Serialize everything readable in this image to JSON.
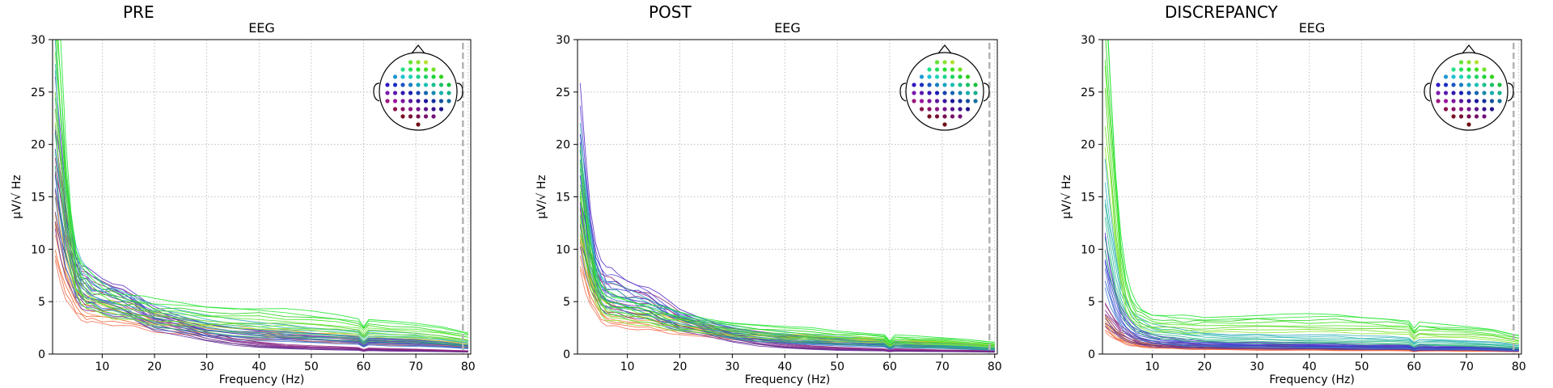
{
  "colors": {
    "grid": "#b0b0b0",
    "nyquist_line": "#b3b3b3",
    "axis": "#000000"
  },
  "chart_data": [
    {
      "type": "line",
      "panel_title": "PRE",
      "title": "EEG",
      "xlabel": "Frequency (Hz)",
      "ylabel": "µV/√ Hz",
      "xlim": [
        0.5,
        80.5
      ],
      "ylim": [
        0,
        30
      ],
      "xticks": [
        "10",
        "20",
        "30",
        "40",
        "50",
        "60",
        "70",
        "80"
      ],
      "yticks": [
        "0",
        "5",
        "10",
        "15",
        "20",
        "25",
        "30"
      ],
      "grid": true,
      "vline_x": 79,
      "legend": "sensor-topomap-inset top-right",
      "x": [
        1,
        2,
        3,
        4,
        5,
        6,
        7,
        8,
        10,
        12,
        14,
        16,
        18,
        20,
        25,
        30,
        35,
        40,
        45,
        50,
        55,
        59,
        60,
        61,
        65,
        70,
        75,
        80
      ],
      "series_groups": [
        {
          "color_family": "green",
          "count": 8,
          "values": [
            29.5,
            23,
            16,
            11,
            8,
            6.8,
            6.2,
            5.8,
            5.2,
            4.8,
            4.6,
            4.4,
            4.2,
            4.0,
            3.8,
            3.6,
            3.5,
            3.4,
            3.3,
            3.1,
            2.9,
            2.7,
            2.1,
            2.6,
            2.4,
            2.2,
            2.0,
            1.6
          ]
        },
        {
          "color_family": "teal",
          "count": 7,
          "values": [
            24,
            19,
            14,
            10.5,
            8,
            6.8,
            6.2,
            5.8,
            5.3,
            5.0,
            4.8,
            4.5,
            4.1,
            3.7,
            3.2,
            2.8,
            2.5,
            2.3,
            2.2,
            2.0,
            1.9,
            1.8,
            1.3,
            1.7,
            1.6,
            1.5,
            1.3,
            1.0
          ]
        },
        {
          "color_family": "blue",
          "count": 8,
          "values": [
            20,
            16,
            12,
            9.5,
            7.5,
            6.6,
            6.3,
            6.0,
            5.6,
            5.4,
            5.3,
            4.6,
            3.9,
            3.4,
            2.8,
            2.3,
            2.0,
            1.8,
            1.6,
            1.5,
            1.4,
            1.3,
            0.9,
            1.2,
            1.1,
            1.0,
            0.9,
            0.7
          ]
        },
        {
          "color_family": "purple",
          "count": 8,
          "values": [
            16,
            13,
            10.5,
            8.5,
            7,
            6.2,
            5.9,
            5.6,
            5.4,
            5.2,
            5.0,
            4.4,
            3.8,
            3.2,
            2.4,
            1.7,
            1.2,
            0.9,
            0.7,
            0.6,
            0.55,
            0.5,
            0.35,
            0.45,
            0.4,
            0.35,
            0.3,
            0.25
          ]
        },
        {
          "color_family": "orange",
          "count": 9,
          "values": [
            12,
            9.5,
            7.5,
            6.2,
            5.2,
            4.6,
            4.3,
            4.2,
            4.0,
            3.9,
            3.8,
            3.6,
            3.3,
            3.0,
            2.6,
            2.3,
            2.1,
            1.9,
            1.8,
            1.6,
            1.5,
            1.4,
            0.9,
            1.3,
            1.2,
            1.1,
            1.0,
            0.8
          ]
        }
      ]
    },
    {
      "type": "line",
      "panel_title": "POST",
      "title": "EEG",
      "xlabel": "Frequency (Hz)",
      "ylabel": "µV/√ Hz",
      "xlim": [
        0.5,
        80.5
      ],
      "ylim": [
        0,
        30
      ],
      "xticks": [
        "10",
        "20",
        "30",
        "40",
        "50",
        "60",
        "70",
        "80"
      ],
      "yticks": [
        "0",
        "5",
        "10",
        "15",
        "20",
        "25",
        "30"
      ],
      "grid": true,
      "vline_x": 79,
      "legend": "sensor-topomap-inset top-right",
      "x": [
        1,
        2,
        3,
        4,
        5,
        6,
        7,
        8,
        10,
        12,
        14,
        16,
        18,
        20,
        25,
        30,
        35,
        40,
        45,
        50,
        55,
        59,
        60,
        61,
        65,
        70,
        75,
        80
      ],
      "series_groups": [
        {
          "color_family": "green",
          "count": 8,
          "values": [
            15,
            11.5,
            8.5,
            6.5,
            5.2,
            4.6,
            4.4,
            4.3,
            4.1,
            3.9,
            3.7,
            3.5,
            3.3,
            3.1,
            2.7,
            2.4,
            2.2,
            2.0,
            1.9,
            1.7,
            1.6,
            1.5,
            1.0,
            1.4,
            1.3,
            1.2,
            1.1,
            0.9
          ]
        },
        {
          "color_family": "teal",
          "count": 7,
          "values": [
            17,
            13,
            9.5,
            7.2,
            6.0,
            5.4,
            5.2,
            5.0,
            4.7,
            4.4,
            4.1,
            3.8,
            3.5,
            3.2,
            2.6,
            2.1,
            1.8,
            1.6,
            1.4,
            1.3,
            1.2,
            1.1,
            0.8,
            1.0,
            0.9,
            0.8,
            0.7,
            0.6
          ]
        },
        {
          "color_family": "blue",
          "count": 8,
          "values": [
            19.5,
            15,
            11,
            8.5,
            7,
            6.3,
            6.2,
            6.0,
            5.6,
            5.3,
            5.0,
            4.4,
            3.8,
            3.3,
            2.6,
            2.0,
            1.7,
            1.4,
            1.2,
            1.1,
            1.0,
            0.9,
            0.6,
            0.85,
            0.8,
            0.7,
            0.6,
            0.5
          ]
        },
        {
          "color_family": "purple",
          "count": 8,
          "values": [
            14,
            11,
            8.5,
            7,
            6.0,
            5.6,
            5.5,
            5.3,
            5.0,
            4.8,
            4.6,
            4.1,
            3.6,
            3.1,
            2.3,
            1.6,
            1.1,
            0.8,
            0.6,
            0.5,
            0.45,
            0.4,
            0.3,
            0.38,
            0.35,
            0.3,
            0.28,
            0.25
          ]
        },
        {
          "color_family": "orange",
          "count": 9,
          "values": [
            11,
            8.5,
            6.5,
            5.2,
            4.3,
            3.9,
            3.7,
            3.6,
            3.4,
            3.3,
            3.2,
            3.0,
            2.8,
            2.6,
            2.2,
            1.9,
            1.7,
            1.5,
            1.4,
            1.3,
            1.2,
            1.1,
            0.7,
            1.0,
            0.95,
            0.9,
            0.8,
            0.6
          ]
        }
      ]
    },
    {
      "type": "line",
      "panel_title": "DISCREPANCY",
      "title": "EEG",
      "xlabel": "Frequency (Hz)",
      "ylabel": "µV/√ Hz",
      "xlim": [
        0.5,
        80.5
      ],
      "ylim": [
        0,
        30
      ],
      "xticks": [
        "10",
        "20",
        "30",
        "40",
        "50",
        "60",
        "70",
        "80"
      ],
      "yticks": [
        "0",
        "5",
        "10",
        "15",
        "20",
        "25",
        "30"
      ],
      "grid": true,
      "vline_x": 79,
      "legend": "sensor-topomap-inset top-right",
      "x": [
        1,
        2,
        3,
        4,
        5,
        6,
        7,
        8,
        10,
        12,
        14,
        16,
        18,
        20,
        25,
        30,
        35,
        40,
        45,
        50,
        55,
        59,
        60,
        61,
        65,
        70,
        75,
        80
      ],
      "series_groups": [
        {
          "color_family": "green",
          "count": 8,
          "values": [
            28,
            21,
            14,
            9,
            6,
            4.5,
            3.8,
            3.4,
            3.0,
            2.9,
            2.8,
            2.8,
            2.8,
            2.8,
            2.9,
            2.9,
            2.9,
            2.9,
            2.9,
            2.8,
            2.7,
            2.5,
            1.9,
            2.3,
            2.2,
            2.1,
            1.9,
            1.4
          ]
        },
        {
          "color_family": "teal",
          "count": 7,
          "values": [
            14,
            10.5,
            7.5,
            5.5,
            4.2,
            3.4,
            2.9,
            2.6,
            2.2,
            2.0,
            1.9,
            1.8,
            1.7,
            1.6,
            1.5,
            1.5,
            1.4,
            1.4,
            1.4,
            1.3,
            1.3,
            1.2,
            0.9,
            1.1,
            1.1,
            1.0,
            0.9,
            0.7
          ]
        },
        {
          "color_family": "blue",
          "count": 8,
          "values": [
            9,
            6.5,
            4.8,
            3.6,
            2.8,
            2.3,
            2.0,
            1.8,
            1.5,
            1.3,
            1.2,
            1.1,
            1.0,
            1.0,
            0.9,
            0.9,
            0.85,
            0.8,
            0.8,
            0.75,
            0.7,
            0.7,
            0.5,
            0.65,
            0.6,
            0.6,
            0.55,
            0.45
          ]
        },
        {
          "color_family": "purple",
          "count": 8,
          "values": [
            3.8,
            3.2,
            2.6,
            2.1,
            1.8,
            1.5,
            1.3,
            1.2,
            1.0,
            0.9,
            0.85,
            0.8,
            0.8,
            0.75,
            0.7,
            0.7,
            0.65,
            0.65,
            0.6,
            0.6,
            0.6,
            0.55,
            0.4,
            0.5,
            0.5,
            0.5,
            0.45,
            0.35
          ]
        },
        {
          "color_family": "orange",
          "count": 9,
          "values": [
            3.0,
            2.4,
            1.9,
            1.6,
            1.3,
            1.1,
            1.0,
            0.9,
            0.8,
            0.75,
            0.7,
            0.65,
            0.6,
            0.6,
            0.55,
            0.5,
            0.5,
            0.5,
            0.45,
            0.45,
            0.45,
            0.4,
            0.3,
            0.4,
            0.4,
            0.35,
            0.35,
            0.3
          ]
        }
      ]
    }
  ]
}
